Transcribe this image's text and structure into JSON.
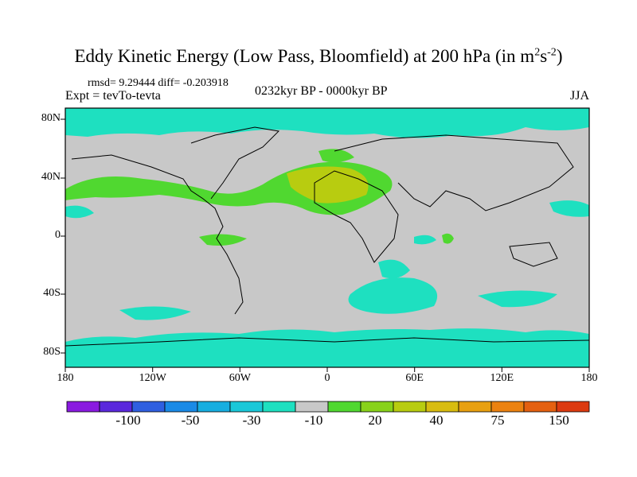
{
  "title": {
    "main": "Eddy Kinetic Energy (Low Pass, Bloomfield) at 200 hPa (in m",
    "sup1": "2",
    "mid": "s",
    "sup2": "-2",
    "end": ")"
  },
  "stats": "rmsd= 9.29444 diff= -0.203918",
  "expt": "Expt = tevTo-tevta",
  "center_label": "0232kyr BP - 0000kyr BP",
  "season": "JJA",
  "yaxis": [
    "80N",
    "40N",
    "0",
    "40S",
    "80S"
  ],
  "xaxis": [
    "180",
    "120W",
    "60W",
    "0",
    "60E",
    "120E",
    "180"
  ],
  "colorbar": {
    "colors": [
      "#8a1ae0",
      "#5a28dc",
      "#2f5fe0",
      "#1a8ae6",
      "#17aee0",
      "#1ac8d8",
      "#1ee0c0",
      "#c8c8c8",
      "#50d830",
      "#88d21a",
      "#b8cc10",
      "#d8bc10",
      "#e8a010",
      "#ec8210",
      "#e46010",
      "#dc3a10"
    ],
    "labels": [
      "-100",
      "-50",
      "-30",
      "-10",
      "20",
      "40",
      "75",
      "150"
    ]
  },
  "colors": {
    "land_neutral": "#c8c8c8",
    "teal": "#1ee0c0",
    "green": "#50d830",
    "yellow_green": "#b8cc10"
  }
}
